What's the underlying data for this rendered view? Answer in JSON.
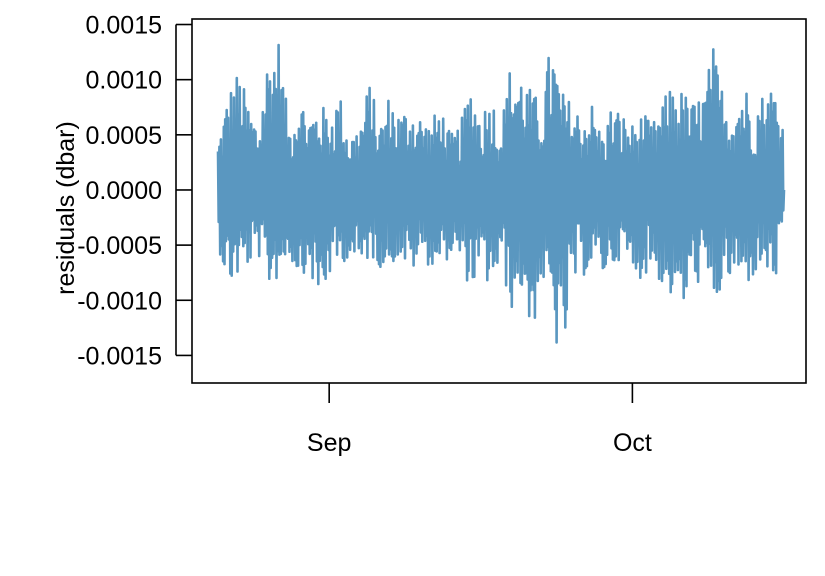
{
  "chart_data": {
    "type": "line",
    "title": "",
    "xlabel": "",
    "ylabel": "residuals (dbar)",
    "x_range": [
      "2016-08-21",
      "2016-10-16"
    ],
    "ylim": [
      -0.00175,
      0.00155
    ],
    "y_ticks": [
      {
        "value": 0.0015,
        "label": "0.0015"
      },
      {
        "value": 0.001,
        "label": "0.0010"
      },
      {
        "value": 0.0005,
        "label": "0.0005"
      },
      {
        "value": 0.0,
        "label": "0.0000"
      },
      {
        "value": -0.0005,
        "label": "-0.0005"
      },
      {
        "value": -0.001,
        "label": "-0.0010"
      },
      {
        "value": -0.0015,
        "label": "-0.0015"
      }
    ],
    "x_ticks": [
      {
        "value": "2016-09-01",
        "label": "Sep"
      },
      {
        "value": "2016-10-01",
        "label": "Oct"
      }
    ],
    "grid": false,
    "legend": "none",
    "series": [
      {
        "color": "#5a97c0",
        "x": [
          "2016-08-21",
          "2016-08-22",
          "2016-08-23",
          "2016-08-24",
          "2016-08-25",
          "2016-08-26",
          "2016-08-27",
          "2016-08-28",
          "2016-08-29",
          "2016-08-30",
          "2016-08-31",
          "2016-09-01",
          "2016-09-02",
          "2016-09-03",
          "2016-09-04",
          "2016-09-05",
          "2016-09-06",
          "2016-09-07",
          "2016-09-08",
          "2016-09-09",
          "2016-09-10",
          "2016-09-11",
          "2016-09-12",
          "2016-09-13",
          "2016-09-14",
          "2016-09-15",
          "2016-09-16",
          "2016-09-17",
          "2016-09-18",
          "2016-09-19",
          "2016-09-20",
          "2016-09-21",
          "2016-09-22",
          "2016-09-23",
          "2016-09-24",
          "2016-09-25",
          "2016-09-26",
          "2016-09-27",
          "2016-09-28",
          "2016-09-29",
          "2016-09-30",
          "2016-10-01",
          "2016-10-02",
          "2016-10-03",
          "2016-10-04",
          "2016-10-05",
          "2016-10-06",
          "2016-10-07",
          "2016-10-08",
          "2016-10-09",
          "2016-10-10",
          "2016-10-11",
          "2016-10-12",
          "2016-10-13",
          "2016-10-14",
          "2016-10-15",
          "2016-10-16"
        ],
        "y_max": [
          0.00045,
          0.0009,
          0.0011,
          0.0008,
          0.0006,
          0.0013,
          0.0014,
          0.0006,
          0.0009,
          0.0007,
          0.0008,
          0.0007,
          0.0009,
          0.0005,
          0.0006,
          0.001,
          0.0006,
          0.0009,
          0.0007,
          0.0008,
          0.0007,
          0.0006,
          0.0008,
          0.0005,
          0.0006,
          0.001,
          0.0007,
          0.0009,
          0.0006,
          0.0012,
          0.0011,
          0.0009,
          0.0008,
          0.0014,
          0.0009,
          0.0008,
          0.0007,
          0.0008,
          0.0005,
          0.0008,
          0.0007,
          0.0006,
          0.0007,
          0.0006,
          0.0008,
          0.001,
          0.0009,
          0.0008,
          0.0009,
          0.0013,
          0.0009,
          0.0008,
          0.001,
          0.0008,
          0.0009,
          0.001,
          0.0006
        ],
        "y_min": [
          -0.0005,
          -0.0009,
          -0.0008,
          -0.0007,
          -0.0006,
          -0.0009,
          -0.0008,
          -0.0006,
          -0.0008,
          -0.0007,
          -0.0011,
          -0.0008,
          -0.0007,
          -0.0006,
          -0.0008,
          -0.0006,
          -0.0007,
          -0.0007,
          -0.0006,
          -0.0008,
          -0.0006,
          -0.0007,
          -0.0007,
          -0.0006,
          -0.0007,
          -0.0009,
          -0.0008,
          -0.0009,
          -0.0007,
          -0.0011,
          -0.0009,
          -0.0014,
          -0.0008,
          -0.0012,
          -0.0017,
          -0.0009,
          -0.0008,
          -0.0007,
          -0.0008,
          -0.0007,
          -0.0006,
          -0.0008,
          -0.0008,
          -0.0007,
          -0.0009,
          -0.001,
          -0.0011,
          -0.0009,
          -0.0008,
          -0.0011,
          -0.0009,
          -0.0008,
          -0.0009,
          -0.0008,
          -0.0007,
          -0.0009,
          -0.0005
        ]
      }
    ]
  }
}
